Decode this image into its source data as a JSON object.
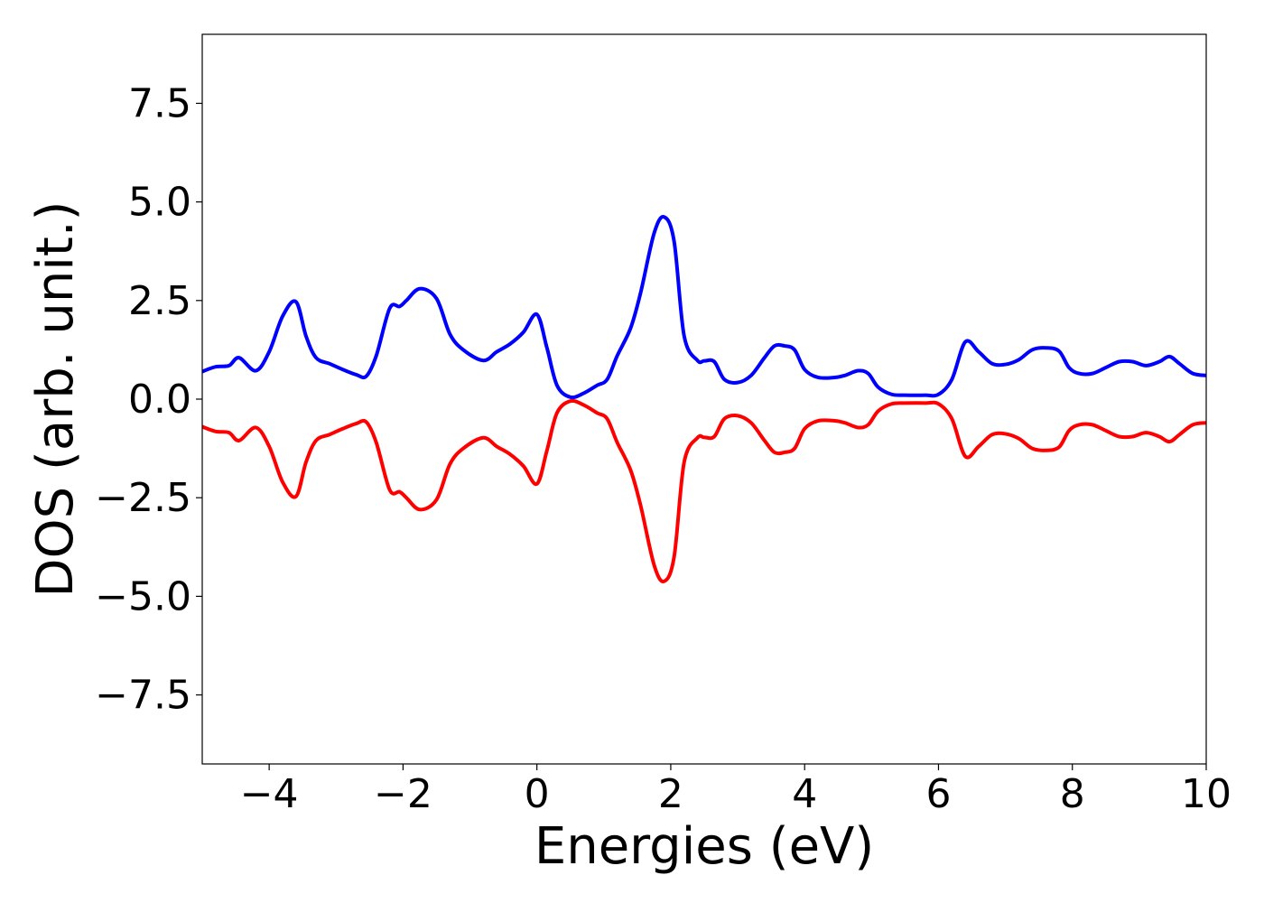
{
  "chart_data": {
    "type": "line",
    "title": "",
    "xlabel": "Energies (eV)",
    "ylabel": "DOS (arb. unit.)",
    "xlim": [
      -5,
      10
    ],
    "ylim": [
      -9.25,
      9.25
    ],
    "grid": false,
    "legend": "none",
    "xticks": [
      -4,
      -2,
      0,
      2,
      4,
      6,
      8,
      10
    ],
    "xtick_labels": [
      "−4",
      "−2",
      "0",
      "2",
      "4",
      "6",
      "8",
      "10"
    ],
    "yticks": [
      -7.5,
      -5.0,
      -2.5,
      0.0,
      2.5,
      5.0,
      7.5
    ],
    "ytick_labels": [
      "−7.5",
      "−5.0",
      "−2.5",
      "0.0",
      "2.5",
      "5.0",
      "7.5"
    ],
    "series": [
      {
        "color": "#0000ff",
        "x": [
          -5.0,
          -4.8,
          -4.6,
          -4.45,
          -4.2,
          -4.0,
          -3.8,
          -3.6,
          -3.45,
          -3.3,
          -3.1,
          -2.9,
          -2.7,
          -2.55,
          -2.4,
          -2.2,
          -2.05,
          -1.95,
          -1.75,
          -1.5,
          -1.3,
          -1.1,
          -0.8,
          -0.6,
          -0.4,
          -0.2,
          0.0,
          0.15,
          0.3,
          0.5,
          0.7,
          0.9,
          1.05,
          1.2,
          1.4,
          1.55,
          1.75,
          1.9,
          2.05,
          2.2,
          2.4,
          2.5,
          2.65,
          2.8,
          3.0,
          3.2,
          3.4,
          3.55,
          3.7,
          3.85,
          4.0,
          4.2,
          4.45,
          4.6,
          4.8,
          4.95,
          5.1,
          5.3,
          5.5,
          5.8,
          6.0,
          6.2,
          6.4,
          6.6,
          6.8,
          7.0,
          7.2,
          7.4,
          7.6,
          7.8,
          7.95,
          8.1,
          8.3,
          8.5,
          8.7,
          8.9,
          9.1,
          9.3,
          9.45,
          9.6,
          9.8,
          10.0
        ],
        "y": [
          0.7,
          0.82,
          0.85,
          1.05,
          0.72,
          1.2,
          2.1,
          2.47,
          1.6,
          1.05,
          0.9,
          0.75,
          0.62,
          0.58,
          1.1,
          2.3,
          2.35,
          2.5,
          2.8,
          2.55,
          1.65,
          1.25,
          0.98,
          1.2,
          1.4,
          1.7,
          2.15,
          1.3,
          0.35,
          0.05,
          0.15,
          0.35,
          0.5,
          1.1,
          1.8,
          2.7,
          4.2,
          4.62,
          4.0,
          1.6,
          0.98,
          0.97,
          0.95,
          0.5,
          0.42,
          0.6,
          1.05,
          1.35,
          1.35,
          1.25,
          0.75,
          0.55,
          0.55,
          0.6,
          0.72,
          0.65,
          0.3,
          0.12,
          0.1,
          0.1,
          0.12,
          0.5,
          1.45,
          1.2,
          0.9,
          0.88,
          1.0,
          1.25,
          1.3,
          1.22,
          0.8,
          0.65,
          0.65,
          0.8,
          0.95,
          0.95,
          0.85,
          0.95,
          1.08,
          0.9,
          0.65,
          0.6
        ]
      },
      {
        "color": "#ff0000",
        "x": [
          -5.0,
          -4.8,
          -4.6,
          -4.45,
          -4.2,
          -4.0,
          -3.8,
          -3.6,
          -3.45,
          -3.3,
          -3.1,
          -2.9,
          -2.7,
          -2.55,
          -2.4,
          -2.2,
          -2.05,
          -1.95,
          -1.75,
          -1.5,
          -1.3,
          -1.1,
          -0.8,
          -0.6,
          -0.4,
          -0.2,
          0.0,
          0.15,
          0.3,
          0.5,
          0.7,
          0.9,
          1.05,
          1.2,
          1.4,
          1.55,
          1.75,
          1.9,
          2.05,
          2.2,
          2.4,
          2.5,
          2.65,
          2.8,
          3.0,
          3.2,
          3.4,
          3.55,
          3.7,
          3.85,
          4.0,
          4.2,
          4.45,
          4.6,
          4.8,
          4.95,
          5.1,
          5.3,
          5.5,
          5.8,
          6.0,
          6.2,
          6.4,
          6.6,
          6.8,
          7.0,
          7.2,
          7.4,
          7.6,
          7.8,
          7.95,
          8.1,
          8.3,
          8.5,
          8.7,
          8.9,
          9.1,
          9.3,
          9.45,
          9.6,
          9.8,
          10.0
        ],
        "y": [
          -0.7,
          -0.82,
          -0.85,
          -1.05,
          -0.72,
          -1.2,
          -2.1,
          -2.47,
          -1.6,
          -1.05,
          -0.9,
          -0.75,
          -0.62,
          -0.58,
          -1.1,
          -2.3,
          -2.35,
          -2.5,
          -2.8,
          -2.55,
          -1.65,
          -1.25,
          -0.98,
          -1.2,
          -1.4,
          -1.7,
          -2.15,
          -1.3,
          -0.35,
          -0.05,
          -0.15,
          -0.35,
          -0.5,
          -1.1,
          -1.8,
          -2.7,
          -4.2,
          -4.62,
          -4.0,
          -1.6,
          -0.98,
          -0.97,
          -0.95,
          -0.5,
          -0.42,
          -0.6,
          -1.05,
          -1.35,
          -1.35,
          -1.25,
          -0.75,
          -0.55,
          -0.55,
          -0.6,
          -0.72,
          -0.65,
          -0.3,
          -0.12,
          -0.1,
          -0.1,
          -0.12,
          -0.5,
          -1.45,
          -1.2,
          -0.9,
          -0.88,
          -1.0,
          -1.25,
          -1.3,
          -1.22,
          -0.8,
          -0.65,
          -0.65,
          -0.8,
          -0.95,
          -0.95,
          -0.85,
          -0.95,
          -1.08,
          -0.9,
          -0.65,
          -0.6
        ]
      }
    ]
  }
}
